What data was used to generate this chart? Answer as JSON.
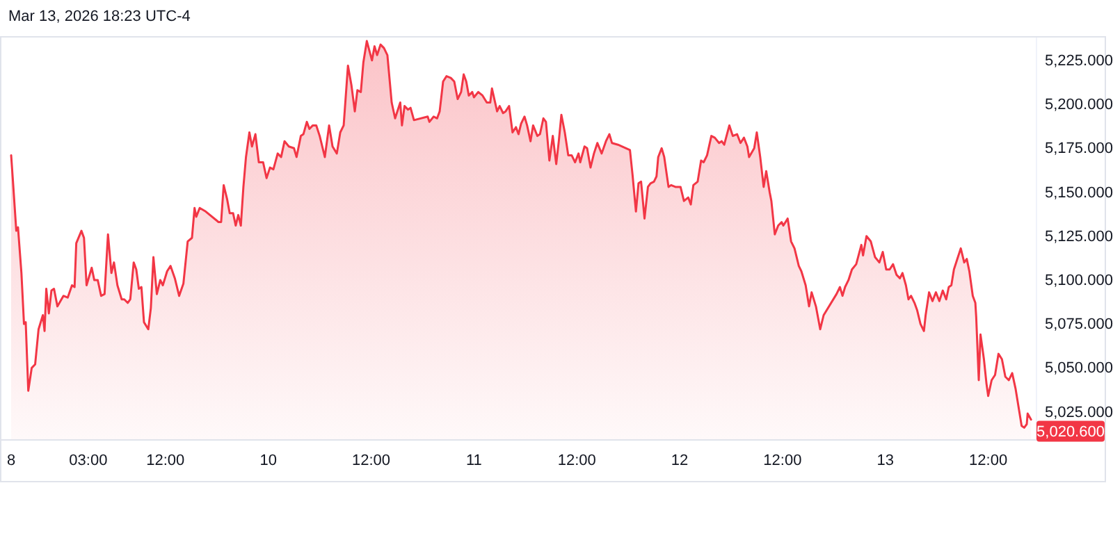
{
  "chart_data": {
    "type": "area",
    "color": "#f23645",
    "annotations": [
      "Mar 13, 2026 18:23 UTC-4",
      {
        "text": "5,020.600",
        "x": "2026-03-13T17:00",
        "y": 5020.6
      }
    ],
    "x": [
      "2026-03-08T18:00",
      "2026-03-08T18:12",
      "2026-03-08T18:36",
      "2026-03-08T18:48",
      "2026-03-08T19:12",
      "2026-03-08T19:30",
      "2026-03-08T19:42",
      "2026-03-08T20:00",
      "2026-03-08T20:24",
      "2026-03-08T20:48",
      "2026-03-08T21:12",
      "2026-03-08T21:42",
      "2026-03-08T21:54",
      "2026-03-08T22:06",
      "2026-03-08T22:24",
      "2026-03-08T22:42",
      "2026-03-08T23:00",
      "2026-03-08T23:24",
      "2026-03-09T00:06",
      "2026-03-09T00:36",
      "2026-03-09T01:06",
      "2026-03-09T01:24",
      "2026-03-09T01:36",
      "2026-03-09T02:12",
      "2026-03-09T02:30",
      "2026-03-09T02:48",
      "2026-03-09T03:24",
      "2026-03-09T03:42",
      "2026-03-09T04:06",
      "2026-03-09T04:30",
      "2026-03-09T04:54",
      "2026-03-09T05:18",
      "2026-03-09T05:42",
      "2026-03-09T06:00",
      "2026-03-09T06:24",
      "2026-03-09T06:54",
      "2026-03-09T07:12",
      "2026-03-09T07:36",
      "2026-03-09T07:54",
      "2026-03-09T08:18",
      "2026-03-09T08:36",
      "2026-03-09T08:54",
      "2026-03-09T09:12",
      "2026-03-09T09:30",
      "2026-03-09T10:00",
      "2026-03-09T10:18",
      "2026-03-09T10:36",
      "2026-03-09T11:00",
      "2026-03-09T11:24",
      "2026-03-09T11:42",
      "2026-03-09T12:12",
      "2026-03-09T12:36",
      "2026-03-09T13:06",
      "2026-03-09T13:36",
      "2026-03-09T14:06",
      "2026-03-09T14:36",
      "2026-03-09T15:06",
      "2026-03-09T15:24",
      "2026-03-09T15:36",
      "2026-03-09T16:00",
      "2026-03-09T16:42",
      "2026-03-09T18:12",
      "2026-03-09T18:30",
      "2026-03-09T18:48",
      "2026-03-09T19:12",
      "2026-03-09T19:30",
      "2026-03-09T19:54",
      "2026-03-09T20:12",
      "2026-03-09T20:30",
      "2026-03-09T20:48",
      "2026-03-09T21:06",
      "2026-03-09T21:24",
      "2026-03-09T21:48",
      "2026-03-09T22:06",
      "2026-03-09T22:30",
      "2026-03-09T22:54",
      "2026-03-09T23:24",
      "2026-03-09T23:48",
      "2026-03-10T00:12",
      "2026-03-10T00:36",
      "2026-03-10T01:06",
      "2026-03-10T01:30",
      "2026-03-10T01:54",
      "2026-03-10T02:24",
      "2026-03-10T03:00",
      "2026-03-10T03:18",
      "2026-03-10T03:48",
      "2026-03-10T04:06",
      "2026-03-10T04:30",
      "2026-03-10T04:48",
      "2026-03-10T05:12",
      "2026-03-10T05:36",
      "2026-03-10T06:00",
      "2026-03-10T06:36",
      "2026-03-10T07:06",
      "2026-03-10T07:30",
      "2026-03-10T08:00",
      "2026-03-10T08:24",
      "2026-03-10T08:48",
      "2026-03-10T09:18",
      "2026-03-10T09:42",
      "2026-03-10T10:06",
      "2026-03-10T10:24",
      "2026-03-10T10:48",
      "2026-03-10T11:06",
      "2026-03-10T11:30",
      "2026-03-10T12:06",
      "2026-03-10T12:24",
      "2026-03-10T12:42",
      "2026-03-10T13:06",
      "2026-03-10T13:30",
      "2026-03-10T13:54",
      "2026-03-10T14:24",
      "2026-03-10T14:48",
      "2026-03-10T15:24",
      "2026-03-10T15:36",
      "2026-03-10T15:54",
      "2026-03-10T16:18",
      "2026-03-10T16:36",
      "2026-03-10T17:00",
      "2026-03-10T18:36",
      "2026-03-10T18:48",
      "2026-03-10T19:18",
      "2026-03-10T19:42",
      "2026-03-10T20:00",
      "2026-03-10T20:24",
      "2026-03-10T20:48",
      "2026-03-10T21:18",
      "2026-03-10T21:42",
      "2026-03-10T22:06",
      "2026-03-10T22:30",
      "2026-03-10T22:48",
      "2026-03-10T23:06",
      "2026-03-10T23:24",
      "2026-03-10T23:48",
      "2026-03-11T00:00",
      "2026-03-11T00:30",
      "2026-03-11T01:00",
      "2026-03-11T01:30",
      "2026-03-11T01:54",
      "2026-03-11T02:06",
      "2026-03-11T02:42",
      "2026-03-11T03:00",
      "2026-03-11T03:24",
      "2026-03-11T03:42",
      "2026-03-11T04:06",
      "2026-03-11T04:30",
      "2026-03-11T04:54",
      "2026-03-11T05:12",
      "2026-03-11T05:30",
      "2026-03-11T05:54",
      "2026-03-11T06:12",
      "2026-03-11T06:36",
      "2026-03-11T06:54",
      "2026-03-11T07:24",
      "2026-03-11T07:42",
      "2026-03-11T08:06",
      "2026-03-11T08:24",
      "2026-03-11T08:48",
      "2026-03-11T09:12",
      "2026-03-11T09:36",
      "2026-03-11T09:54",
      "2026-03-11T10:12",
      "2026-03-11T10:36",
      "2026-03-11T11:00",
      "2026-03-11T11:24",
      "2026-03-11T11:48",
      "2026-03-11T12:12",
      "2026-03-11T12:24",
      "2026-03-11T12:54",
      "2026-03-11T13:12",
      "2026-03-11T13:36",
      "2026-03-11T14:00",
      "2026-03-11T14:24",
      "2026-03-11T14:54",
      "2026-03-11T15:24",
      "2026-03-11T15:48",
      "2026-03-11T16:06",
      "2026-03-11T16:48",
      "2026-03-11T18:12",
      "2026-03-11T18:30",
      "2026-03-11T18:54",
      "2026-03-11T19:12",
      "2026-03-11T19:30",
      "2026-03-11T19:54",
      "2026-03-11T20:18",
      "2026-03-11T20:36",
      "2026-03-11T21:00",
      "2026-03-11T21:18",
      "2026-03-11T21:30",
      "2026-03-11T21:54",
      "2026-03-11T22:12",
      "2026-03-11T22:42",
      "2026-03-11T23:00",
      "2026-03-11T23:30",
      "2026-03-12T00:06",
      "2026-03-12T00:30",
      "2026-03-12T01:00",
      "2026-03-12T01:18",
      "2026-03-12T01:36",
      "2026-03-12T02:06",
      "2026-03-12T02:30",
      "2026-03-12T02:48",
      "2026-03-12T03:12",
      "2026-03-12T03:42",
      "2026-03-12T04:06",
      "2026-03-12T04:36",
      "2026-03-12T04:54",
      "2026-03-12T05:12",
      "2026-03-12T05:48",
      "2026-03-12T06:12",
      "2026-03-12T06:42",
      "2026-03-12T07:06",
      "2026-03-12T07:30",
      "2026-03-12T07:54",
      "2026-03-12T08:06",
      "2026-03-12T08:42",
      "2026-03-12T09:00",
      "2026-03-12T09:24",
      "2026-03-12T09:48",
      "2026-03-12T10:06",
      "2026-03-12T10:30",
      "2026-03-12T10:42",
      "2026-03-12T11:06",
      "2026-03-12T11:30",
      "2026-03-12T11:54",
      "2026-03-12T12:06",
      "2026-03-12T12:36",
      "2026-03-12T13:00",
      "2026-03-12T13:24",
      "2026-03-12T13:54",
      "2026-03-12T14:12",
      "2026-03-12T14:42",
      "2026-03-12T15:06",
      "2026-03-12T15:24",
      "2026-03-12T15:54",
      "2026-03-12T16:24",
      "2026-03-12T16:48",
      "2026-03-12T18:18",
      "2026-03-12T18:42",
      "2026-03-12T19:00",
      "2026-03-12T19:18",
      "2026-03-12T19:42",
      "2026-03-12T20:06",
      "2026-03-12T20:36",
      "2026-03-12T21:12",
      "2026-03-12T21:24",
      "2026-03-12T21:48",
      "2026-03-12T22:18",
      "2026-03-12T22:48",
      "2026-03-12T23:18",
      "2026-03-12T23:42",
      "2026-03-13T00:06",
      "2026-03-13T00:30",
      "2026-03-13T00:54",
      "2026-03-13T01:18",
      "2026-03-13T01:42",
      "2026-03-13T02:00",
      "2026-03-13T02:24",
      "2026-03-13T02:42",
      "2026-03-13T03:00",
      "2026-03-13T03:24",
      "2026-03-13T03:42",
      "2026-03-13T04:06",
      "2026-03-13T04:30",
      "2026-03-13T04:42",
      "2026-03-13T05:06",
      "2026-03-13T05:30",
      "2026-03-13T05:54",
      "2026-03-13T06:18",
      "2026-03-13T06:42",
      "2026-03-13T07:06",
      "2026-03-13T07:24",
      "2026-03-13T07:42",
      "2026-03-13T08:00",
      "2026-03-13T08:24",
      "2026-03-13T08:48",
      "2026-03-13T09:12",
      "2026-03-13T09:30",
      "2026-03-13T09:48",
      "2026-03-13T10:12",
      "2026-03-13T10:30",
      "2026-03-13T10:36",
      "2026-03-13T10:54",
      "2026-03-13T11:06",
      "2026-03-13T11:30",
      "2026-03-13T11:48",
      "2026-03-13T12:00",
      "2026-03-13T12:24",
      "2026-03-13T12:48",
      "2026-03-13T13:12",
      "2026-03-13T13:36",
      "2026-03-13T14:00",
      "2026-03-13T14:24",
      "2026-03-13T14:48",
      "2026-03-13T15:12",
      "2026-03-13T15:36",
      "2026-03-13T15:54",
      "2026-03-13T16:12",
      "2026-03-13T16:30",
      "2026-03-13T16:36",
      "2026-03-13T17:00"
    ],
    "values": [
      5171,
      5157,
      5128,
      5130,
      5104,
      5075,
      5076,
      5037,
      5050,
      5052,
      5072,
      5080,
      5071,
      5095,
      5081,
      5094,
      5095,
      5085,
      5091,
      5090,
      5097,
      5096,
      5121,
      5128,
      5124,
      5097,
      5107,
      5100,
      5100,
      5091,
      5092,
      5126,
      5104,
      5110,
      5097,
      5089,
      5089,
      5087,
      5089,
      5110,
      5106,
      5095,
      5096,
      5076,
      5072,
      5084,
      5113,
      5092,
      5100,
      5097,
      5105,
      5108,
      5101,
      5091,
      5098,
      5122,
      5124,
      5141,
      5136,
      5141,
      5139,
      5133,
      5133,
      5154,
      5146,
      5138,
      5138,
      5131,
      5137,
      5131,
      5153,
      5170,
      5184,
      5176,
      5183,
      5167,
      5167,
      5158,
      5164,
      5163,
      5172,
      5170,
      5179,
      5176,
      5175,
      5170,
      5182,
      5183,
      5190,
      5186,
      5188,
      5188,
      5182,
      5170,
      5188,
      5176,
      5172,
      5184,
      5188,
      5222,
      5211,
      5196,
      5208,
      5207,
      5224,
      5236,
      5225,
      5233,
      5228,
      5234,
      5232,
      5228,
      5201,
      5192,
      5201,
      5188,
      5199,
      5197,
      5198,
      5191,
      5193,
      5190,
      5193,
      5192,
      5196,
      5213,
      5216,
      5215,
      5213,
      5203,
      5207,
      5217,
      5213,
      5205,
      5207,
      5204,
      5207,
      5205,
      5201,
      5201,
      5209,
      5196,
      5199,
      5195,
      5196,
      5199,
      5184,
      5187,
      5183,
      5189,
      5193,
      5188,
      5179,
      5188,
      5182,
      5183,
      5192,
      5190,
      5168,
      5182,
      5166,
      5179,
      5194,
      5184,
      5171,
      5171,
      5167,
      5172,
      5167,
      5176,
      5175,
      5164,
      5172,
      5178,
      5172,
      5179,
      5183,
      5178,
      5177,
      5174,
      5160,
      5139,
      5155,
      5156,
      5135,
      5153,
      5155,
      5156,
      5159,
      5170,
      5175,
      5170,
      5153,
      5154,
      5153,
      5153,
      5145,
      5147,
      5143,
      5154,
      5156,
      5168,
      5167,
      5171,
      5182,
      5181,
      5178,
      5179,
      5177,
      5188,
      5182,
      5183,
      5178,
      5181,
      5176,
      5170,
      5175,
      5184,
      5170,
      5153,
      5162,
      5150,
      5145,
      5126,
      5131,
      5133,
      5131,
      5135,
      5122,
      5118,
      5108,
      5105,
      5097,
      5085,
      5093,
      5085,
      5072,
      5080,
      5092,
      5096,
      5091,
      5096,
      5100,
      5106,
      5109,
      5120,
      5114,
      5125,
      5122,
      5113,
      5110,
      5116,
      5106,
      5106,
      5109,
      5103,
      5101,
      5104,
      5097,
      5089,
      5091,
      5087,
      5083,
      5075,
      5071,
      5080,
      5093,
      5088,
      5093,
      5088,
      5094,
      5089,
      5096,
      5097,
      5106,
      5112,
      5118,
      5110,
      5112,
      5105,
      5091,
      5087,
      5079,
      5043,
      5069,
      5055,
      5041,
      5034,
      5043,
      5046,
      5058,
      5055,
      5045,
      5043,
      5047,
      5038,
      5026,
      5017,
      5016,
      5018,
      5024,
      5020.6
    ],
    "xlim": [
      "2026-03-08T16:42",
      "2026-03-13T17:38"
    ],
    "xticks": [
      {
        "value": "2026-03-08T18:00",
        "label": "8"
      },
      {
        "value": "2026-03-09T03:00",
        "label": "03:00"
      },
      {
        "value": "2026-03-09T12:00",
        "label": "12:00"
      },
      {
        "value": "2026-03-10T00:00",
        "label": "10"
      },
      {
        "value": "2026-03-10T12:00",
        "label": "12:00"
      },
      {
        "value": "2026-03-11T00:00",
        "label": "11"
      },
      {
        "value": "2026-03-11T12:00",
        "label": "12:00"
      },
      {
        "value": "2026-03-12T00:00",
        "label": "12"
      },
      {
        "value": "2026-03-12T12:00",
        "label": "12:00"
      },
      {
        "value": "2026-03-13T00:00",
        "label": "13"
      },
      {
        "value": "2026-03-13T12:00",
        "label": "12:00"
      }
    ],
    "ylim": [
      5009,
      5238
    ],
    "yticks": [
      {
        "value": 5025,
        "label": "5,025.000"
      },
      {
        "value": 5050,
        "label": "5,050.000"
      },
      {
        "value": 5075,
        "label": "5,075.000"
      },
      {
        "value": 5100,
        "label": "5,100.000"
      },
      {
        "value": 5125,
        "label": "5,125.000"
      },
      {
        "value": 5150,
        "label": "5,150.000"
      },
      {
        "value": 5175,
        "label": "5,175.000"
      },
      {
        "value": 5200,
        "label": "5,200.000"
      },
      {
        "value": 5225,
        "label": "5,225.000"
      }
    ]
  }
}
